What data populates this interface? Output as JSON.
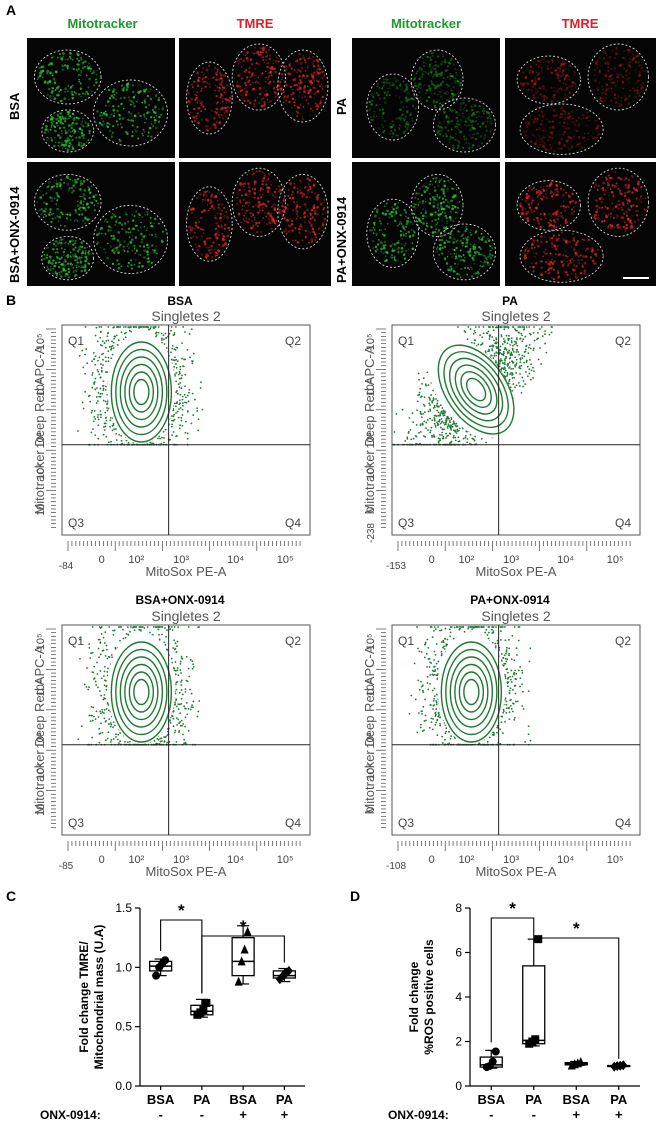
{
  "panelA": {
    "letter": "A",
    "col_headers": [
      "Mitotracker",
      "TMRE",
      "Mitotracker",
      "TMRE"
    ],
    "row_labels": [
      "BSA",
      "PA",
      "BSA+ONX-0914",
      "PA+ONX-0914"
    ],
    "colors": {
      "mitotracker": "#1b9a2a",
      "tmre": "#e0202a",
      "background": "#050505"
    }
  },
  "panelB": {
    "letter": "B",
    "plots": [
      {
        "title": "BSA",
        "gate": "Singletes 2",
        "xlabel": "MitoSox PE-A",
        "ylabel": "Mitotracker Deep Red APC-A",
        "xmin_label": "-84",
        "ymin_label": "",
        "x_ticks": [
          "0",
          "10²",
          "10³",
          "10⁴",
          "10⁵"
        ],
        "y_ticks": [
          "10",
          "10²",
          "10³",
          "10⁴",
          "10⁵"
        ]
      },
      {
        "title": "PA",
        "gate": "Singletes 2",
        "xlabel": "MitoSox PE-A",
        "ylabel": "Mitotracker Deep Red APC-A",
        "xmin_label": "-153",
        "ymin_label": "-238",
        "x_ticks": [
          "0",
          "10²",
          "10³",
          "10⁴",
          "10⁵"
        ],
        "y_ticks": [
          "0",
          "10²",
          "10³",
          "10⁴",
          "10⁵"
        ]
      },
      {
        "title": "BSA+ONX-0914",
        "gate": "Singletes 2",
        "xlabel": "MitoSox PE-A",
        "ylabel": "Mitotracker Deep Red APC-A",
        "xmin_label": "-85",
        "ymin_label": "",
        "x_ticks": [
          "0",
          "10²",
          "10³",
          "10⁴",
          "10⁵"
        ],
        "y_ticks": [
          "10",
          "10²",
          "10³",
          "10⁴",
          "10⁵"
        ]
      },
      {
        "title": "PA+ONX-0914",
        "gate": "Singletes 2",
        "xlabel": "MitoSox PE-A",
        "ylabel": "Mitotracker Deep Red APC-A",
        "xmin_label": "-108",
        "ymin_label": "",
        "x_ticks": [
          "0",
          "10²",
          "10³",
          "10⁴",
          "10⁵"
        ],
        "y_ticks": [
          "0",
          "10²",
          "10³",
          "10⁴",
          "10⁵"
        ]
      }
    ],
    "quadrants": [
      "Q1",
      "Q2",
      "Q3",
      "Q4"
    ],
    "dot_color": "#1e7a32"
  },
  "chart_data": [
    {
      "panel": "C",
      "type": "box",
      "ylabel": "Fold change TMRE/ Mitochondrial mass (U.A)",
      "ylim": [
        0,
        1.5
      ],
      "yticks": [
        "0.0",
        "0.5",
        "1.0",
        "1.5"
      ],
      "categories": [
        "BSA",
        "PA",
        "BSA",
        "PA"
      ],
      "treatment_label": "ONX-0914:",
      "treatment": [
        "-",
        "-",
        "+",
        "+"
      ],
      "markers": [
        "circle",
        "square",
        "triangle",
        "diamond"
      ],
      "boxes": [
        {
          "min": 0.93,
          "q1": 0.97,
          "median": 1.01,
          "q3": 1.05,
          "max": 1.07,
          "points": [
            0.93,
            1.0,
            1.03,
            1.06
          ]
        },
        {
          "min": 0.58,
          "q1": 0.6,
          "median": 0.63,
          "q3": 0.68,
          "max": 0.73,
          "points": [
            0.6,
            0.62,
            0.64,
            0.7
          ]
        },
        {
          "min": 0.86,
          "q1": 0.93,
          "median": 1.05,
          "q3": 1.25,
          "max": 1.35,
          "points": [
            0.88,
            1.05,
            1.15,
            1.3
          ]
        },
        {
          "min": 0.88,
          "q1": 0.91,
          "median": 0.93,
          "q3": 0.97,
          "max": 0.99,
          "points": [
            0.9,
            0.93,
            0.95,
            0.97
          ]
        }
      ],
      "significance": [
        {
          "from": 0,
          "to": 1,
          "label": "*"
        },
        {
          "from": 1,
          "to": 3,
          "label": "*"
        }
      ]
    },
    {
      "panel": "D",
      "type": "box",
      "ylabel": "Fold change %ROS positive cells",
      "ylim": [
        0,
        8
      ],
      "yticks": [
        "0",
        "2",
        "4",
        "6",
        "8"
      ],
      "categories": [
        "BSA",
        "PA",
        "BSA",
        "PA"
      ],
      "treatment_label": "ONX-0914:",
      "treatment": [
        "-",
        "-",
        "+",
        "+"
      ],
      "markers": [
        "circle",
        "square",
        "triangle",
        "diamond"
      ],
      "boxes": [
        {
          "min": 0.8,
          "q1": 0.85,
          "median": 0.95,
          "q3": 1.3,
          "max": 1.6,
          "points": [
            0.85,
            0.9,
            1.1,
            1.55
          ]
        },
        {
          "min": 1.8,
          "q1": 1.9,
          "median": 2.05,
          "q3": 5.4,
          "max": 6.6,
          "points": [
            1.9,
            2.0,
            2.1,
            6.6
          ]
        },
        {
          "min": 0.9,
          "q1": 0.95,
          "median": 1.0,
          "q3": 1.05,
          "max": 1.1,
          "points": [
            0.92,
            0.98,
            1.02,
            1.08
          ]
        },
        {
          "min": 0.85,
          "q1": 0.88,
          "median": 0.9,
          "q3": 0.92,
          "max": 0.95,
          "points": [
            0.87,
            0.9,
            0.91,
            0.93
          ]
        }
      ],
      "significance": [
        {
          "from": 0,
          "to": 1,
          "label": "*"
        },
        {
          "from": 1,
          "to": 3,
          "label": "*"
        }
      ]
    }
  ]
}
